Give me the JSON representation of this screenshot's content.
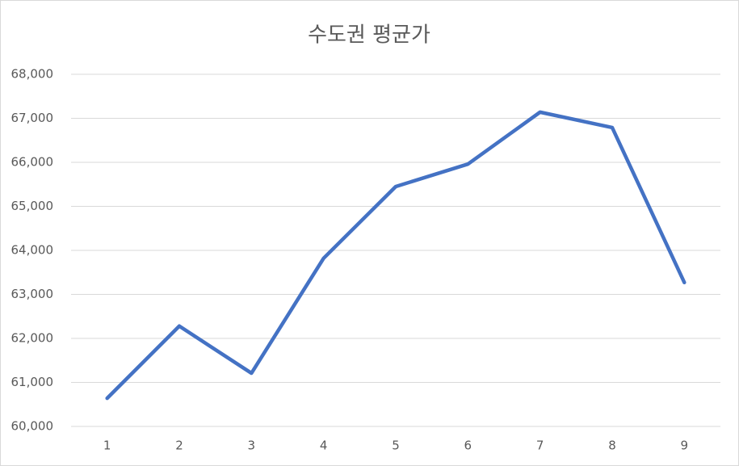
{
  "chart_data": {
    "type": "line",
    "title": "수도권 평균가",
    "categories": [
      "1",
      "2",
      "3",
      "4",
      "5",
      "6",
      "7",
      "8",
      "9"
    ],
    "series": [
      {
        "name": "수도권 평균가",
        "color": "#4472c4",
        "values": [
          60640,
          62280,
          61210,
          63820,
          65450,
          65960,
          67140,
          66790,
          63270
        ]
      }
    ],
    "ylim": [
      60000,
      68000
    ],
    "yticks": [
      {
        "value": 60000,
        "label": "60,000"
      },
      {
        "value": 61000,
        "label": "61,000"
      },
      {
        "value": 62000,
        "label": "62,000"
      },
      {
        "value": 63000,
        "label": "63,000"
      },
      {
        "value": 64000,
        "label": "64,000"
      },
      {
        "value": 65000,
        "label": "65,000"
      },
      {
        "value": 66000,
        "label": "66,000"
      },
      {
        "value": 67000,
        "label": "67,000"
      },
      {
        "value": 68000,
        "label": "68,000"
      }
    ],
    "grid": true
  }
}
